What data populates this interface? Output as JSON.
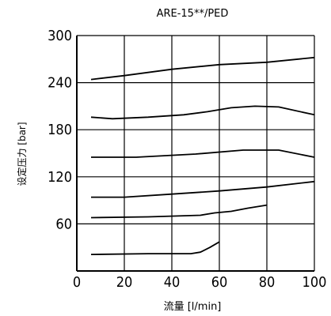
{
  "chart_data": {
    "type": "line",
    "title": "ARE-15**/PED",
    "xlabel": "流量 [l/min]",
    "ylabel": "设定压力 [bar]",
    "xlim": [
      0,
      100
    ],
    "ylim": [
      0,
      300
    ],
    "x_ticks": [
      "0",
      "20",
      "40",
      "60",
      "80",
      "100"
    ],
    "y_ticks": [
      "60",
      "120",
      "180",
      "240",
      "300"
    ],
    "grid": true,
    "series": [
      {
        "x": [
          6,
          20,
          40,
          60,
          80,
          100
        ],
        "y": [
          244,
          249,
          257,
          263,
          266,
          272
        ]
      },
      {
        "x": [
          6,
          15,
          30,
          45,
          55,
          65,
          75,
          85,
          100
        ],
        "y": [
          196,
          194,
          196,
          199,
          203,
          208,
          210,
          209,
          199
        ]
      },
      {
        "x": [
          6,
          25,
          50,
          70,
          85,
          100
        ],
        "y": [
          145,
          145,
          149,
          154,
          154,
          145
        ]
      },
      {
        "x": [
          6,
          20,
          40,
          60,
          80,
          100
        ],
        "y": [
          94,
          94,
          98,
          102,
          107,
          114
        ]
      },
      {
        "x": [
          6,
          30,
          52,
          58,
          65,
          72,
          80
        ],
        "y": [
          68,
          69,
          71,
          74,
          76,
          80,
          84
        ]
      },
      {
        "x": [
          6,
          30,
          48,
          52,
          56,
          60
        ],
        "y": [
          21,
          22,
          22,
          24,
          30,
          37
        ]
      }
    ]
  }
}
